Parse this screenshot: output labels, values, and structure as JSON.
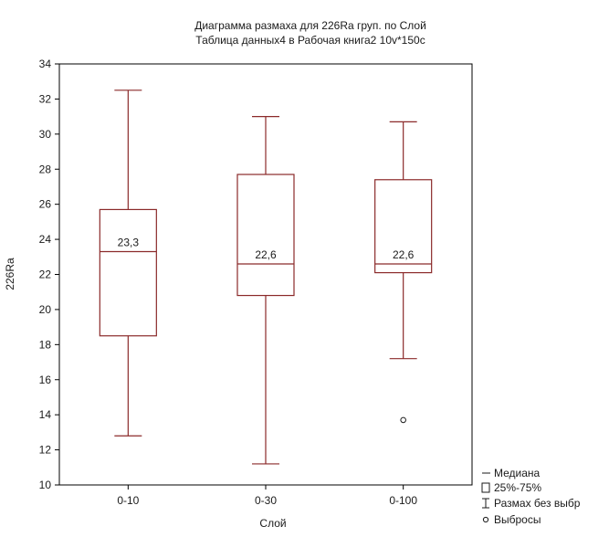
{
  "chart_data": {
    "type": "boxplot",
    "title": [
      "Диаграмма размаха для 226Ra груп. по Слой",
      "Таблица данных4 в Рабочая книга2 10v*150c"
    ],
    "xlabel": "Слой",
    "ylabel": "226Ra",
    "ylim": [
      10,
      34
    ],
    "yticks": [
      10,
      12,
      14,
      16,
      18,
      20,
      22,
      24,
      26,
      28,
      30,
      32,
      34
    ],
    "grid": false,
    "legend_position": "bottom-right",
    "colors": {
      "box": "#8b2a2a",
      "axis": "#000000",
      "text": "#1a1a1a"
    },
    "categories": [
      "0-10",
      "0-30",
      "0-100"
    ],
    "boxes": [
      {
        "category": "0-10",
        "whisker_low": 12.8,
        "q1": 18.5,
        "median": 23.3,
        "q3": 25.7,
        "whisker_high": 32.5,
        "median_label": "23,3",
        "outliers": []
      },
      {
        "category": "0-30",
        "whisker_low": 11.2,
        "q1": 20.8,
        "median": 22.6,
        "q3": 27.7,
        "whisker_high": 31.0,
        "median_label": "22,6",
        "outliers": []
      },
      {
        "category": "0-100",
        "whisker_low": 17.2,
        "q1": 22.1,
        "median": 22.6,
        "q3": 27.4,
        "whisker_high": 30.7,
        "median_label": "22,6",
        "outliers": [
          13.7
        ]
      }
    ],
    "legend": [
      {
        "symbol": "median",
        "label": "Медиана"
      },
      {
        "symbol": "box",
        "label": "25%-75%"
      },
      {
        "symbol": "whisker",
        "label": "Размах без выбр"
      },
      {
        "symbol": "outlier",
        "label": "Выбросы"
      }
    ]
  }
}
